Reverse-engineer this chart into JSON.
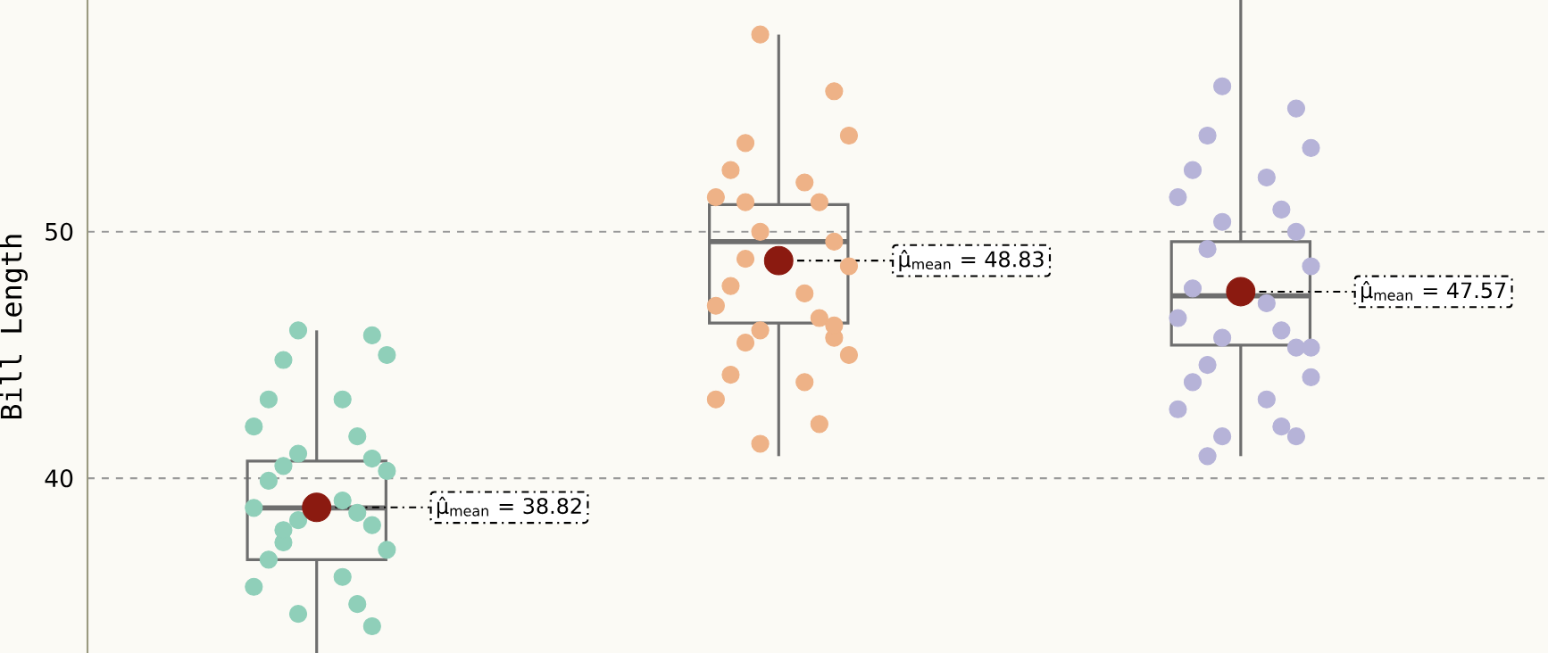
{
  "chart_data": {
    "type": "box",
    "ylabel": "Bill Length",
    "categories": [
      null,
      null,
      null
    ],
    "boxes": [
      {
        "low": 32.9,
        "q1": 36.7,
        "median": 38.8,
        "q3": 40.7,
        "high": 46.0
      },
      {
        "low": 40.9,
        "q1": 46.3,
        "median": 49.6,
        "q3": 51.1,
        "high": 58.0
      },
      {
        "low": 40.9,
        "q1": 45.4,
        "median": 47.4,
        "q3": 49.6,
        "high": 59.4
      }
    ],
    "ylim": [
      32.9,
      59.4
    ],
    "yticks": [
      40,
      50
    ],
    "grid": "y",
    "tick_labels": "y",
    "annotations": [
      "μ̂$_{mean}$ = 38.82",
      "μ̂$_{mean}$ = 48.83",
      "μ̂$_{mean}$ = 47.57"
    ],
    "series": [
      {
        "type": "scatter",
        "colors": [
          "#8fcfb9",
          "#eeb287",
          "#b6b3d8"
        ],
        "values": [
          46.0,
          58.0,
          55.9
        ]
      },
      {
        "type": "scatter",
        "colors": [
          "#8fcfb9",
          "#eeb287",
          "#b6b3d8"
        ],
        "values": [
          45.8,
          55.7,
          55.0
        ]
      },
      {
        "type": "scatter",
        "colors": [
          "#8fcfb9",
          "#eeb287",
          "#b6b3d8"
        ],
        "values": [
          44.8,
          53.6,
          53.9
        ]
      },
      {
        "type": "scatter",
        "colors": [
          "#8fcfb9",
          "#eeb287",
          "#b6b3d8"
        ],
        "values": [
          45.0,
          53.9,
          53.4
        ]
      },
      {
        "type": "scatter",
        "colors": [
          "#8fcfb9",
          "#eeb287",
          "#b6b3d8"
        ],
        "values": [
          43.2,
          52.5,
          52.5
        ]
      },
      {
        "type": "scatter",
        "colors": [
          "#8fcfb9",
          "#eeb287",
          "#b6b3d8"
        ],
        "values": [
          43.2,
          52.0,
          52.2
        ]
      },
      {
        "type": "scatter",
        "colors": [
          "#8fcfb9",
          "#eeb287",
          "#b6b3d8"
        ],
        "values": [
          42.1,
          51.4,
          51.4
        ]
      },
      {
        "type": "scatter",
        "colors": [
          "#8fcfb9",
          "#eeb287",
          "#b6b3d8"
        ],
        "values": [
          41.7,
          51.2,
          50.9
        ]
      },
      {
        "type": "scatter",
        "colors": [
          "#8fcfb9",
          "#eeb287",
          "#b6b3d8"
        ],
        "values": [
          41.0,
          50.0,
          50.4
        ]
      },
      {
        "type": "scatter",
        "colors": [
          "#8fcfb9",
          "#eeb287",
          "#b6b3d8"
        ],
        "values": [
          40.8,
          49.6,
          50.0
        ]
      },
      {
        "type": "scatter",
        "colors": [
          "#8fcfb9",
          "#eeb287",
          "#b6b3d8"
        ],
        "values": [
          40.5,
          48.9,
          49.3
        ]
      },
      {
        "type": "scatter",
        "colors": [
          "#8fcfb9",
          "#eeb287",
          "#b6b3d8"
        ],
        "values": [
          40.3,
          48.6,
          48.6
        ]
      },
      {
        "type": "scatter",
        "colors": [
          "#8fcfb9",
          "#eeb287",
          "#b6b3d8"
        ],
        "values": [
          39.9,
          47.8,
          47.7
        ]
      },
      {
        "type": "scatter",
        "colors": [
          "#8fcfb9",
          "#eeb287",
          "#b6b3d8"
        ],
        "values": [
          39.1,
          47.5,
          47.1
        ]
      },
      {
        "type": "scatter",
        "colors": [
          "#8fcfb9",
          "#eeb287",
          "#b6b3d8"
        ],
        "values": [
          38.8,
          47.0,
          46.5
        ]
      },
      {
        "type": "scatter",
        "colors": [
          "#8fcfb9",
          "#eeb287",
          "#b6b3d8"
        ],
        "values": [
          38.6,
          46.5,
          46.0
        ]
      },
      {
        "type": "scatter",
        "colors": [
          "#8fcfb9",
          "#eeb287",
          "#b6b3d8"
        ],
        "values": [
          38.3,
          46.0,
          45.7
        ]
      },
      {
        "type": "scatter",
        "colors": [
          "#8fcfb9",
          "#eeb287",
          "#b6b3d8"
        ],
        "values": [
          38.1,
          45.7,
          45.3
        ]
      },
      {
        "type": "scatter",
        "colors": [
          "#8fcfb9",
          "#eeb287",
          "#b6b3d8"
        ],
        "values": [
          37.4,
          45.5,
          44.6
        ]
      },
      {
        "type": "scatter",
        "colors": [
          "#8fcfb9",
          "#eeb287",
          "#b6b3d8"
        ],
        "values": [
          37.1,
          45.0,
          44.1
        ]
      },
      {
        "type": "scatter",
        "colors": [
          "#8fcfb9",
          "#eeb287",
          "#b6b3d8"
        ],
        "values": [
          36.7,
          44.2,
          43.9
        ]
      },
      {
        "type": "scatter",
        "colors": [
          "#8fcfb9",
          "#eeb287",
          "#b6b3d8"
        ],
        "values": [
          36.0,
          43.9,
          43.2
        ]
      },
      {
        "type": "scatter",
        "colors": [
          "#8fcfb9",
          "#eeb287",
          "#b6b3d8"
        ],
        "values": [
          35.6,
          43.2,
          42.8
        ]
      },
      {
        "type": "scatter",
        "colors": [
          "#8fcfb9",
          "#eeb287",
          "#b6b3d8"
        ],
        "values": [
          34.9,
          42.2,
          42.1
        ]
      },
      {
        "type": "scatter",
        "colors": [
          "#8fcfb9",
          "#eeb287",
          "#b6b3d8"
        ],
        "values": [
          34.5,
          41.4,
          41.7
        ]
      },
      {
        "type": "scatter",
        "colors": [
          "#8fcfb9",
          "#eeb287",
          "#b6b3d8"
        ],
        "values": [
          34.0,
          46.2,
          41.7
        ]
      },
      {
        "type": "scatter",
        "colors": [
          "#8fcfb9",
          "#eeb287",
          "#b6b3d8"
        ],
        "values": [
          37.9,
          51.2,
          40.9
        ]
      },
      {
        "type": "scatter",
        "colors": [
          "#8fcfb9",
          "#eeb287",
          "#b6b3d8"
        ],
        "values": [
          null,
          null,
          45.3
        ]
      },
      {
        "type": "scatter",
        "color": "#8b1a10",
        "values": [
          38.82,
          48.83,
          47.57
        ]
      }
    ]
  }
}
